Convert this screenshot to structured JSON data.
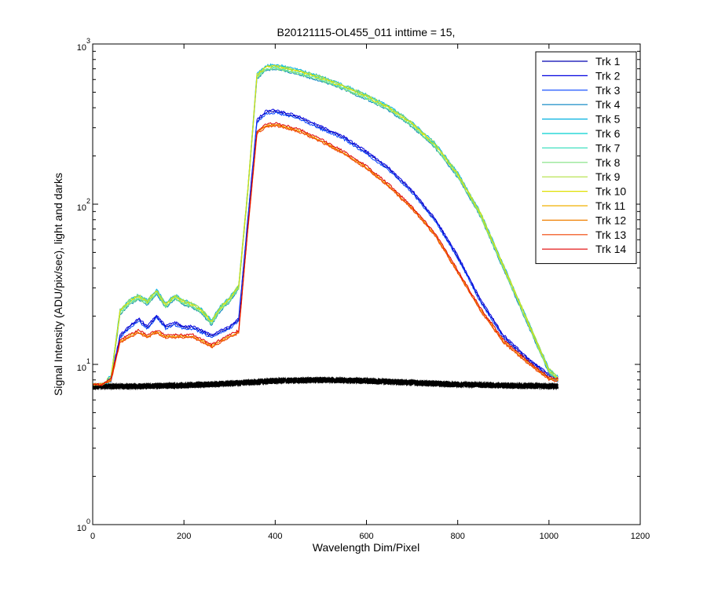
{
  "chart_data": {
    "type": "line",
    "title": "B20121115-OL455_011 inttime = 15,",
    "xlabel": "Wavelength Dim/Pixel",
    "ylabel": "Signal Intensity (ADU/pix/sec), light and darks",
    "xlim": [
      0,
      1200
    ],
    "ylim": [
      1,
      1000
    ],
    "yscale": "log",
    "xticks": [
      0,
      200,
      400,
      600,
      800,
      1000,
      1200
    ],
    "yticks": [
      {
        "base": "10",
        "exp": "0",
        "value": 1
      },
      {
        "base": "10",
        "exp": "1",
        "value": 10
      },
      {
        "base": "10",
        "exp": "2",
        "value": 100
      },
      {
        "base": "10",
        "exp": "3",
        "value": 1000
      }
    ],
    "grid": false,
    "legend_position": "top-right",
    "series": [
      {
        "name": "Trk 1",
        "color": "#0000b0",
        "group": "mid"
      },
      {
        "name": "Trk 2",
        "color": "#0000e0",
        "group": "mid"
      },
      {
        "name": "Trk 3",
        "color": "#0040ff",
        "group": "mid"
      },
      {
        "name": "Trk 4",
        "color": "#0080c0",
        "group": "high"
      },
      {
        "name": "Trk 5",
        "color": "#00b0e0",
        "group": "high"
      },
      {
        "name": "Trk 6",
        "color": "#00d0d0",
        "group": "high"
      },
      {
        "name": "Trk 7",
        "color": "#40e0c0",
        "group": "high"
      },
      {
        "name": "Trk 8",
        "color": "#80e080",
        "group": "high"
      },
      {
        "name": "Trk 9",
        "color": "#b0e040",
        "group": "high"
      },
      {
        "name": "Trk 10",
        "color": "#e0e000",
        "group": "high"
      },
      {
        "name": "Trk 11",
        "color": "#f0b000",
        "group": "low"
      },
      {
        "name": "Trk 12",
        "color": "#f08000",
        "group": "low"
      },
      {
        "name": "Trk 13",
        "color": "#f04000",
        "group": "low"
      },
      {
        "name": "Trk 14",
        "color": "#e00000",
        "group": "low"
      }
    ],
    "profiles": {
      "high": {
        "x": [
          0,
          20,
          40,
          60,
          80,
          100,
          120,
          140,
          160,
          180,
          200,
          220,
          240,
          260,
          280,
          300,
          320,
          340,
          360,
          380,
          400,
          450,
          500,
          550,
          600,
          650,
          700,
          750,
          800,
          850,
          900,
          950,
          1000,
          1020
        ],
        "y": [
          7.5,
          7.5,
          8,
          21,
          24,
          26,
          24,
          28,
          23,
          26,
          24,
          23,
          21,
          18,
          22,
          25,
          30,
          120,
          620,
          700,
          710,
          660,
          600,
          530,
          460,
          390,
          310,
          230,
          150,
          85,
          40,
          19,
          9,
          8
        ]
      },
      "mid": {
        "x": [
          0,
          20,
          40,
          60,
          80,
          100,
          120,
          140,
          160,
          180,
          200,
          220,
          240,
          260,
          280,
          300,
          320,
          340,
          360,
          380,
          400,
          450,
          500,
          550,
          600,
          650,
          700,
          750,
          800,
          850,
          900,
          950,
          1000,
          1020
        ],
        "y": [
          7.5,
          7.5,
          8,
          15,
          17,
          19,
          17,
          20,
          17,
          18,
          17,
          17,
          16,
          15,
          16,
          17,
          19,
          80,
          330,
          375,
          380,
          350,
          300,
          260,
          210,
          165,
          120,
          80,
          47,
          25,
          15,
          11,
          8.5,
          8
        ]
      },
      "low": {
        "x": [
          0,
          20,
          40,
          60,
          80,
          100,
          120,
          140,
          160,
          180,
          200,
          220,
          240,
          260,
          280,
          300,
          320,
          340,
          360,
          380,
          400,
          450,
          500,
          550,
          600,
          650,
          700,
          750,
          800,
          850,
          900,
          950,
          1000,
          1020
        ],
        "y": [
          7.5,
          7.5,
          8,
          14,
          15,
          16,
          15,
          16,
          15,
          15,
          15,
          15,
          14,
          13,
          14,
          15,
          16,
          70,
          280,
          310,
          315,
          290,
          250,
          210,
          170,
          130,
          95,
          65,
          38,
          22,
          14,
          10.5,
          8.2,
          8
        ]
      },
      "darks": {
        "x": [
          0,
          100,
          200,
          300,
          400,
          500,
          600,
          700,
          800,
          900,
          1020
        ],
        "y": [
          7.3,
          7.3,
          7.4,
          7.6,
          7.9,
          8.0,
          7.9,
          7.7,
          7.5,
          7.4,
          7.3
        ]
      }
    }
  }
}
